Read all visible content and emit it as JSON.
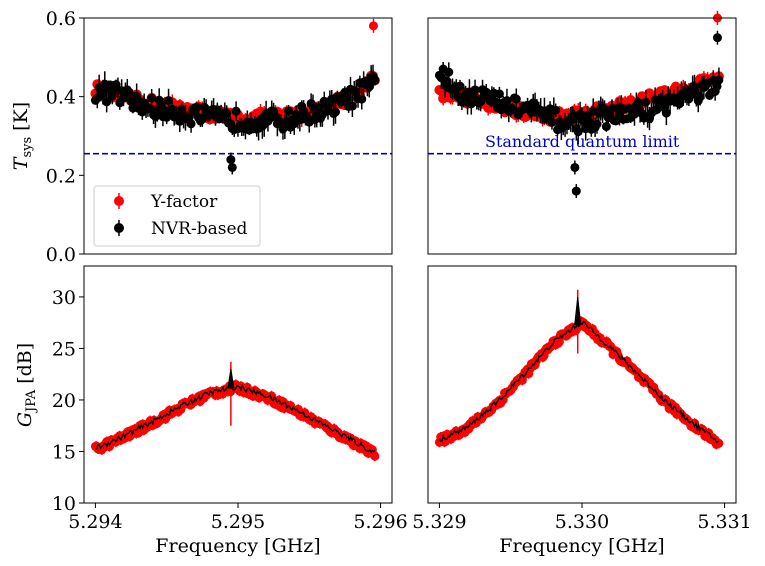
{
  "chart_data": [
    {
      "type": "scatter",
      "panel": "top-left",
      "ylabel_main": "T",
      "ylabel_sub": "sys",
      "ylabel_unit": "[K]",
      "xlim": [
        5.294,
        5.296
      ],
      "ylim": [
        0.0,
        0.6
      ],
      "yticks": [
        0.0,
        0.2,
        0.4,
        0.6
      ],
      "ytick_labels": [
        "0.0",
        "0.2",
        "0.4",
        "0.6"
      ],
      "reference_line": {
        "y": 0.255,
        "color": "#0000cc",
        "style": "dashed"
      },
      "legend": {
        "position": "lower-left",
        "entries": [
          "Y-factor",
          "NVR-based"
        ]
      },
      "colors": {
        "yfactor": "#ff0000",
        "nvr": "#000000"
      },
      "series": [
        {
          "name": "Y-factor",
          "color": "#ff0000",
          "x": [
            5.294,
            5.29415,
            5.2943,
            5.29445,
            5.2946,
            5.29475,
            5.2949,
            5.29505,
            5.2952,
            5.29535,
            5.2955,
            5.29565,
            5.2958,
            5.29595
          ],
          "y": [
            0.42,
            0.4,
            0.39,
            0.38,
            0.37,
            0.36,
            0.35,
            0.34,
            0.35,
            0.35,
            0.36,
            0.38,
            0.4,
            0.45
          ]
        },
        {
          "name": "NVR-based",
          "color": "#000000",
          "x": [
            5.294,
            5.29415,
            5.2943,
            5.29445,
            5.2946,
            5.29475,
            5.2949,
            5.29505,
            5.2952,
            5.29535,
            5.2955,
            5.29565,
            5.2958,
            5.29595
          ],
          "y": [
            0.41,
            0.41,
            0.38,
            0.37,
            0.36,
            0.35,
            0.34,
            0.34,
            0.34,
            0.34,
            0.36,
            0.37,
            0.4,
            0.43
          ]
        }
      ],
      "outliers": [
        {
          "x": 5.29595,
          "y": 0.58,
          "series": "Y-factor"
        },
        {
          "x": 5.29495,
          "y": 0.24,
          "series": "NVR-based"
        },
        {
          "x": 5.29496,
          "y": 0.22,
          "series": "NVR-based"
        }
      ]
    },
    {
      "type": "scatter",
      "panel": "top-right",
      "xlim": [
        5.329,
        5.331
      ],
      "ylim": [
        0.0,
        0.6
      ],
      "annotation": "Standard quantum limit",
      "reference_line": {
        "y": 0.255,
        "color": "#0000cc",
        "style": "dashed"
      },
      "series": [
        {
          "name": "Y-factor",
          "color": "#ff0000",
          "x": [
            5.329,
            5.32915,
            5.3293,
            5.32945,
            5.3296,
            5.32975,
            5.3299,
            5.33005,
            5.3302,
            5.33035,
            5.3305,
            5.33065,
            5.3308,
            5.33095
          ],
          "y": [
            0.41,
            0.4,
            0.39,
            0.37,
            0.36,
            0.35,
            0.35,
            0.36,
            0.37,
            0.38,
            0.4,
            0.41,
            0.43,
            0.45
          ]
        },
        {
          "name": "NVR-based",
          "color": "#000000",
          "x": [
            5.329,
            5.32915,
            5.3293,
            5.32945,
            5.3296,
            5.32975,
            5.3299,
            5.33005,
            5.3302,
            5.33035,
            5.3305,
            5.33065,
            5.3308,
            5.33095
          ],
          "y": [
            0.46,
            0.41,
            0.4,
            0.38,
            0.37,
            0.35,
            0.33,
            0.34,
            0.35,
            0.36,
            0.37,
            0.39,
            0.41,
            0.42
          ]
        }
      ],
      "outliers": [
        {
          "x": 5.33095,
          "y": 0.6,
          "series": "Y-factor"
        },
        {
          "x": 5.33095,
          "y": 0.55,
          "series": "NVR-based"
        },
        {
          "x": 5.32995,
          "y": 0.22,
          "series": "NVR-based"
        },
        {
          "x": 5.32996,
          "y": 0.16,
          "series": "NVR-based"
        }
      ]
    },
    {
      "type": "line",
      "panel": "bottom-left",
      "xlabel": "Frequency [GHz]",
      "ylabel_main": "G",
      "ylabel_sub": "JPA",
      "ylabel_unit": "[dB]",
      "xlim": [
        5.294,
        5.296
      ],
      "ylim": [
        10,
        33
      ],
      "xticks": [
        5.294,
        5.295,
        5.296
      ],
      "xtick_labels": [
        "5.294",
        "5.295",
        "5.296"
      ],
      "yticks": [
        10,
        15,
        20,
        25,
        30
      ],
      "ytick_labels": [
        "10",
        "15",
        "20",
        "25",
        "30"
      ],
      "series": [
        {
          "name": "Y-factor",
          "color": "#ff0000",
          "x": [
            5.294,
            5.2942,
            5.2944,
            5.2946,
            5.2948,
            5.295,
            5.2952,
            5.2954,
            5.2956,
            5.2958,
            5.29595
          ],
          "y": [
            15.2,
            16.4,
            17.8,
            19.3,
            20.6,
            21.2,
            20.3,
            19.0,
            17.5,
            16.0,
            14.8
          ]
        },
        {
          "name": "NVR-based",
          "color": "#000000",
          "x": [
            5.294,
            5.2942,
            5.2944,
            5.2946,
            5.2948,
            5.295,
            5.2952,
            5.2954,
            5.2956,
            5.2958,
            5.29595
          ],
          "y": [
            15.3,
            16.5,
            17.9,
            19.4,
            20.7,
            21.3,
            20.4,
            19.1,
            17.6,
            16.1,
            14.9
          ]
        }
      ],
      "peak": {
        "x": 5.29495,
        "y": 23.0
      }
    },
    {
      "type": "line",
      "panel": "bottom-right",
      "xlabel": "Frequency [GHz]",
      "xlim": [
        5.329,
        5.331
      ],
      "ylim": [
        10,
        33
      ],
      "xticks": [
        5.329,
        5.33,
        5.331
      ],
      "xtick_labels": [
        "5.329",
        "5.330",
        "5.331"
      ],
      "series": [
        {
          "name": "Y-factor",
          "color": "#ff0000",
          "x": [
            5.329,
            5.3292,
            5.3294,
            5.3296,
            5.3298,
            5.33,
            5.3302,
            5.3304,
            5.3306,
            5.3308,
            5.33095
          ],
          "y": [
            16.0,
            17.3,
            19.6,
            22.5,
            25.5,
            27.5,
            25.0,
            22.3,
            19.6,
            17.4,
            15.9
          ]
        },
        {
          "name": "NVR-based",
          "color": "#000000",
          "x": [
            5.329,
            5.3292,
            5.3294,
            5.3296,
            5.3298,
            5.33,
            5.3302,
            5.3304,
            5.3306,
            5.3308,
            5.33095
          ],
          "y": [
            16.1,
            17.4,
            19.7,
            22.6,
            25.6,
            27.6,
            25.1,
            22.4,
            19.7,
            17.5,
            16.0
          ]
        }
      ],
      "peak": {
        "x": 5.32997,
        "y": 30.0
      }
    }
  ]
}
